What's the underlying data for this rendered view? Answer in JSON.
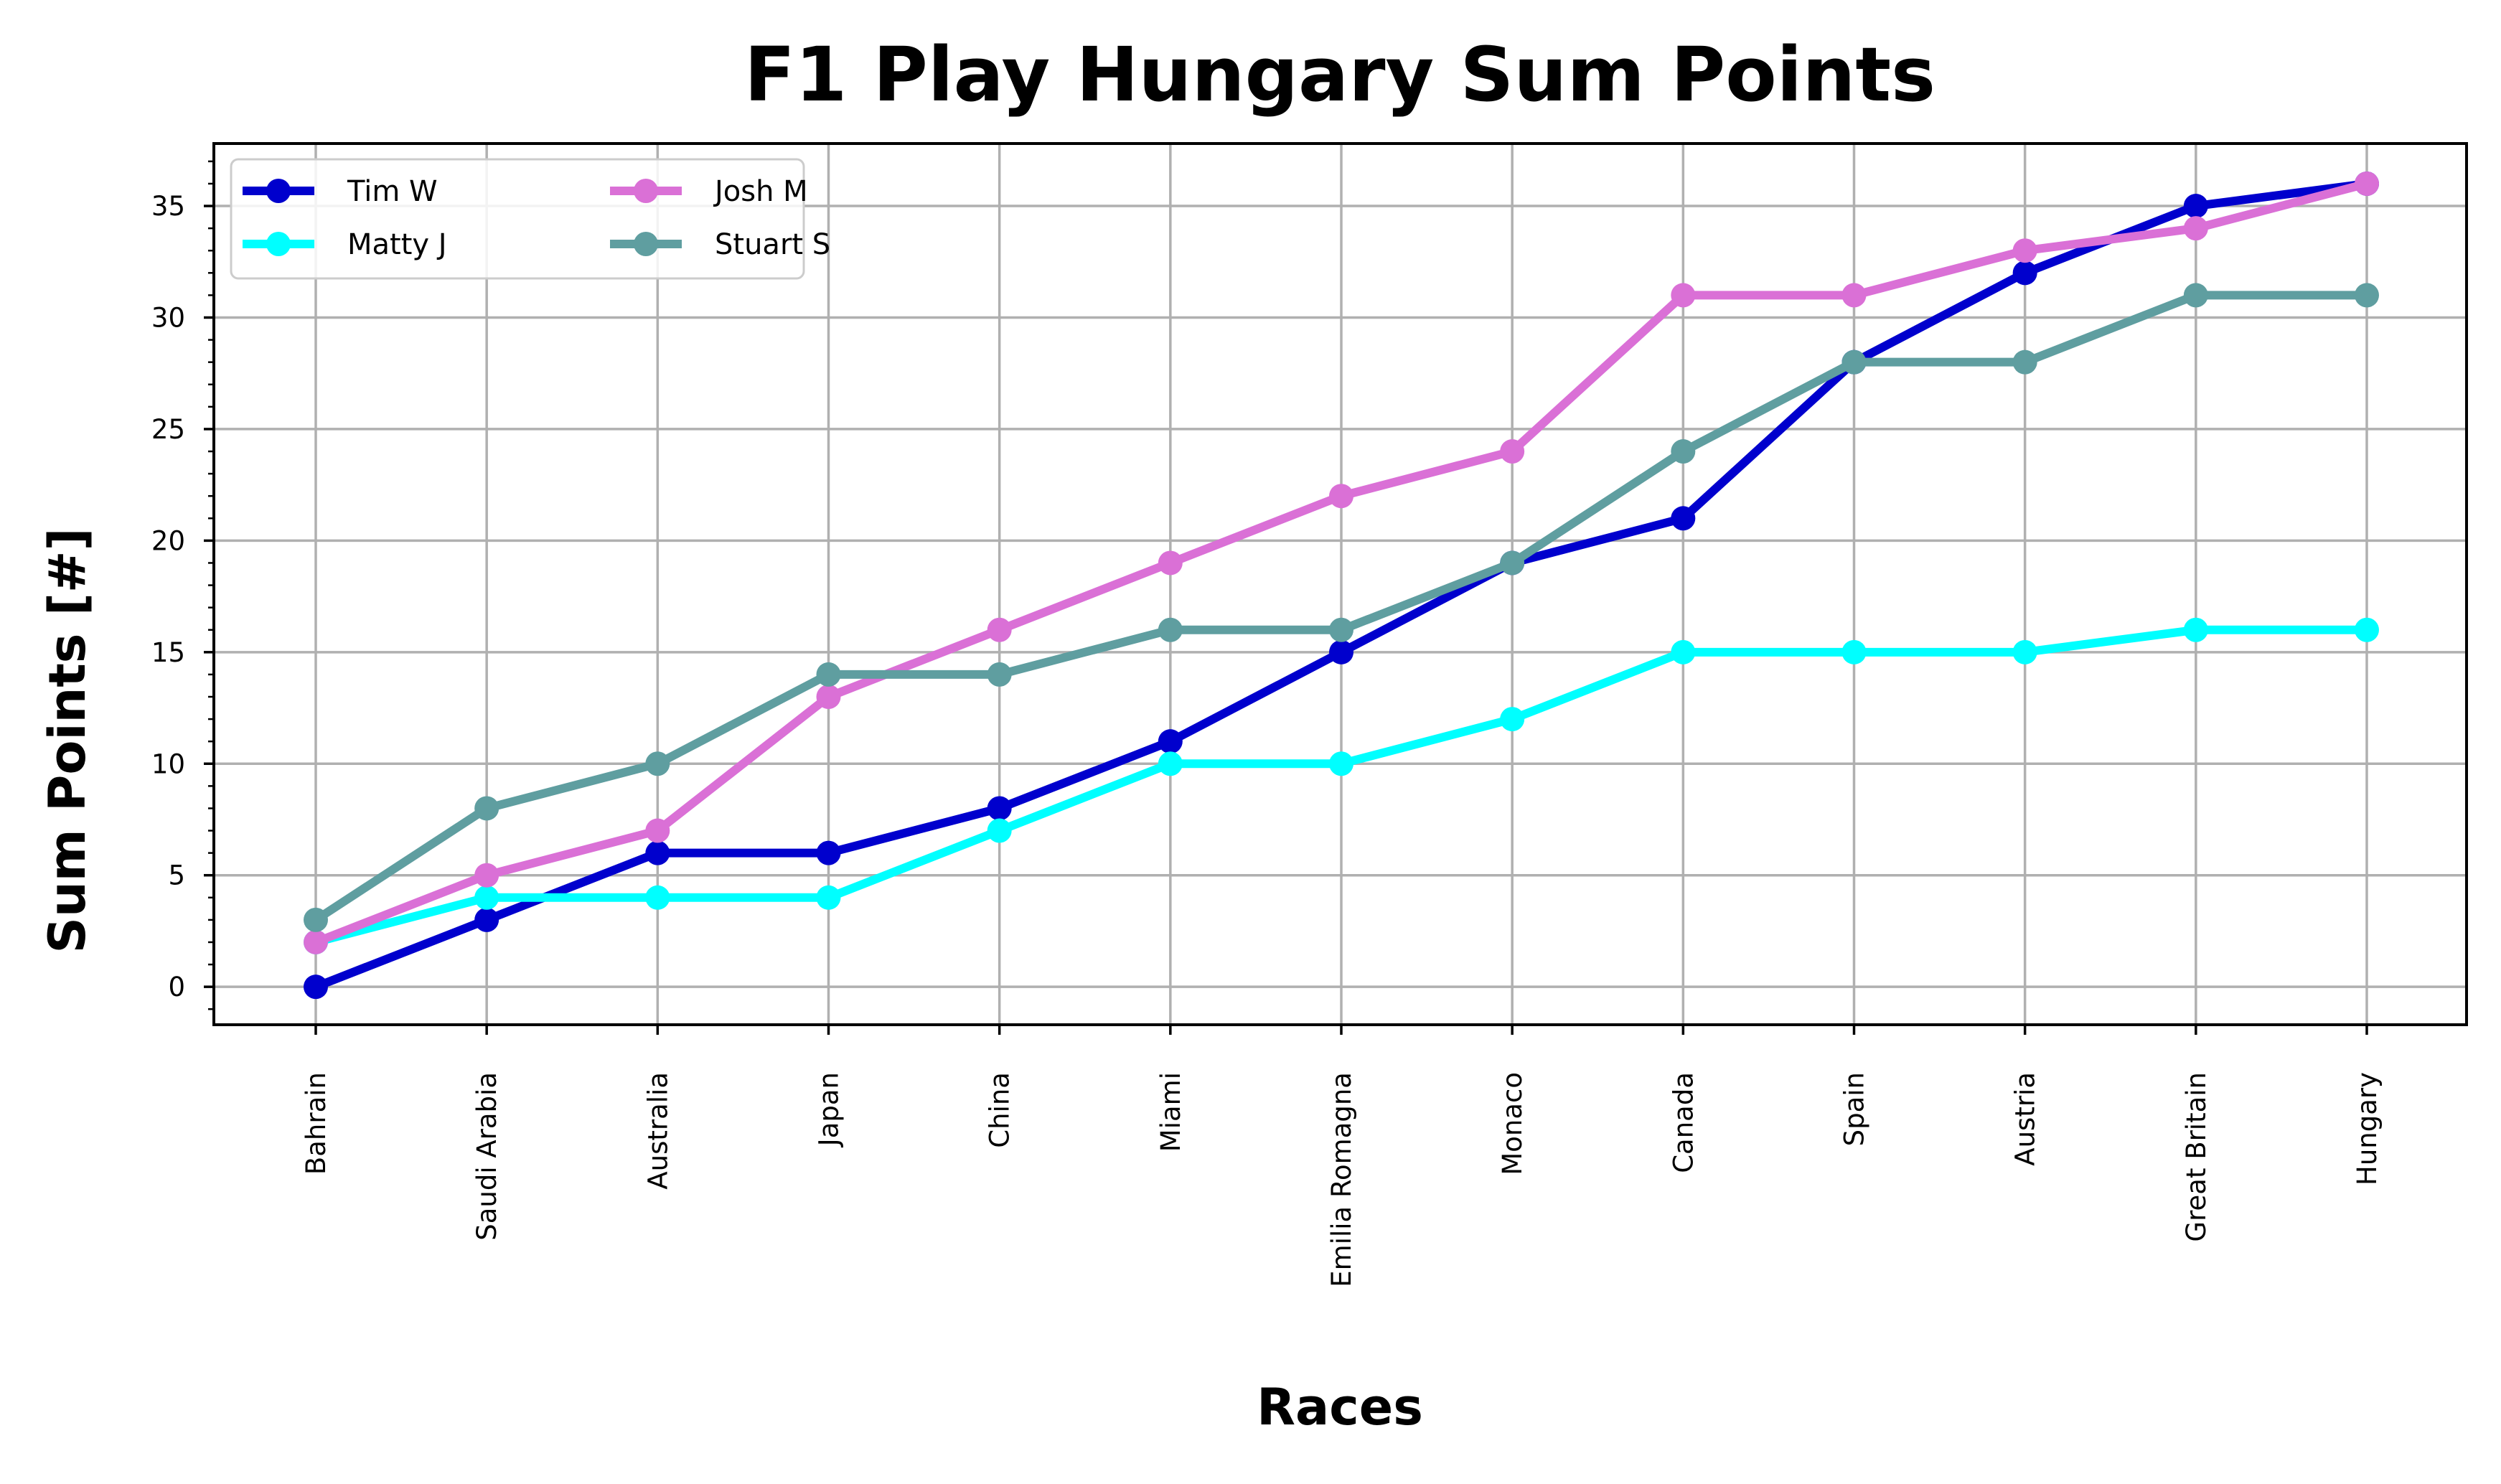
{
  "chart_data": {
    "type": "line",
    "title": "F1 Play Hungary Sum Points",
    "xlabel": "Races",
    "ylabel": "Sum Points [#]",
    "categories": [
      "Bahrain",
      "Saudi Arabia",
      "Australia",
      "Japan",
      "China",
      "Miami",
      "Emilia Romagna",
      "Monaco",
      "Canada",
      "Spain",
      "Austria",
      "Great Britain",
      "Hungary"
    ],
    "ylim": [
      -1.7,
      37.8
    ],
    "yticks": [
      0,
      5,
      10,
      15,
      20,
      25,
      30,
      35
    ],
    "grid": true,
    "legend_position": "top-left",
    "legend_columns": 2,
    "series": [
      {
        "name": "Tim W",
        "color": "#0000cd",
        "values": [
          0,
          3,
          6,
          6,
          8,
          11,
          15,
          19,
          21,
          28,
          32,
          35,
          36
        ]
      },
      {
        "name": "Matty J",
        "color": "#00ffff",
        "values": [
          2,
          4,
          4,
          4,
          7,
          10,
          10,
          12,
          15,
          15,
          15,
          16,
          16
        ]
      },
      {
        "name": "Josh M",
        "color": "#da70d6",
        "values": [
          2,
          5,
          7,
          13,
          16,
          19,
          22,
          24,
          31,
          31,
          33,
          34,
          36
        ]
      },
      {
        "name": "Stuart S",
        "color": "#5f9ea0",
        "values": [
          3,
          8,
          10,
          14,
          14,
          16,
          16,
          19,
          24,
          28,
          28,
          31,
          31
        ]
      }
    ]
  }
}
